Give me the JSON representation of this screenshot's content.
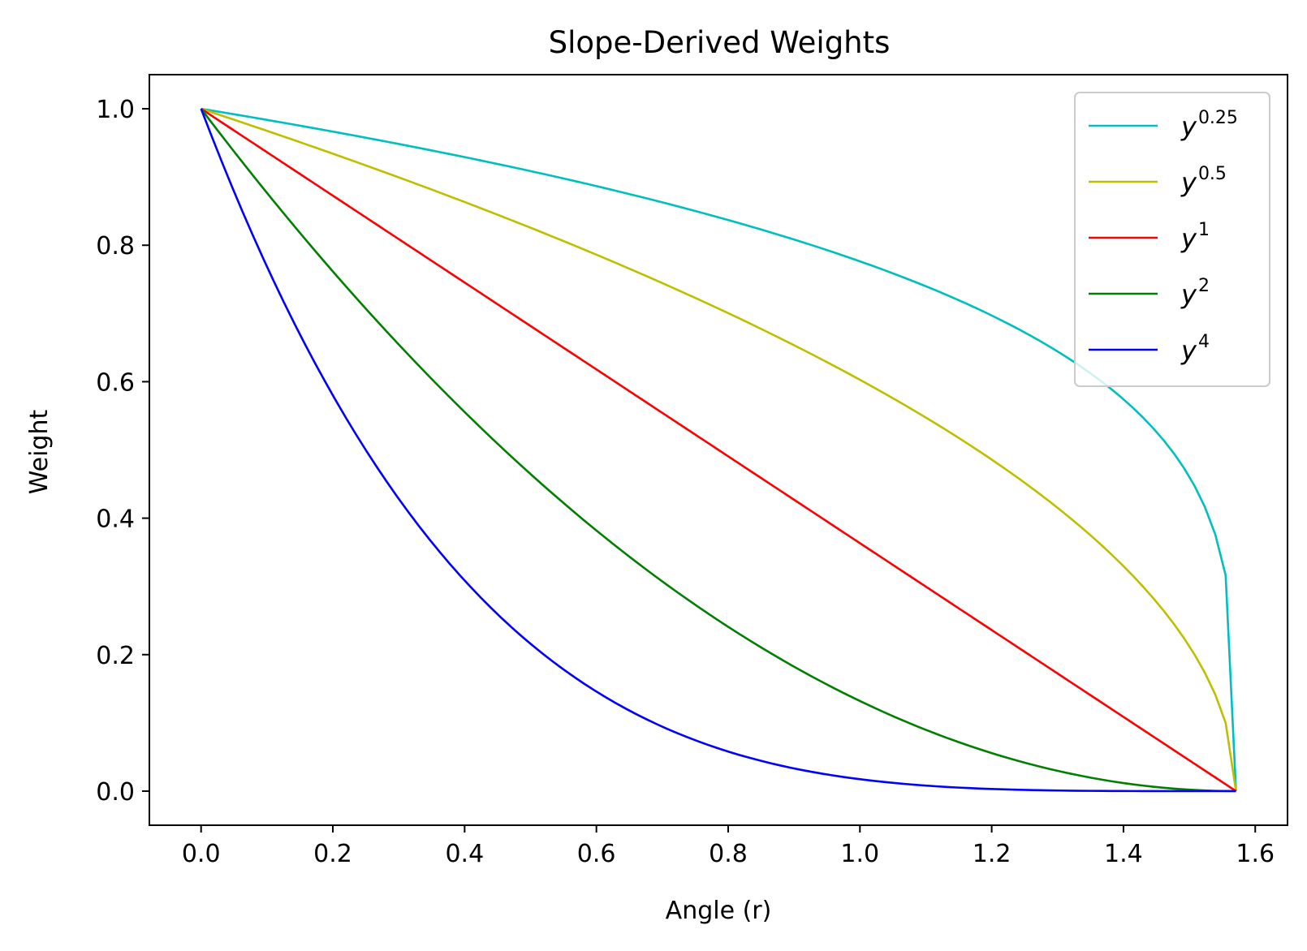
{
  "chart_data": {
    "type": "line",
    "title": "Slope-Derived Weights",
    "xlabel": "Angle (r)",
    "ylabel": "Weight",
    "xlim": [
      -0.0785,
      1.649
    ],
    "ylim": [
      -0.05,
      1.05
    ],
    "x_ticks": [
      "0.0",
      "0.2",
      "0.4",
      "0.6",
      "0.8",
      "1.0",
      "1.2",
      "1.4",
      "1.6"
    ],
    "x_tick_values": [
      0.0,
      0.2,
      0.4,
      0.6,
      0.8,
      1.0,
      1.2,
      1.4,
      1.6
    ],
    "y_ticks": [
      "0.0",
      "0.2",
      "0.4",
      "0.6",
      "0.8",
      "1.0"
    ],
    "y_tick_values": [
      0.0,
      0.2,
      0.4,
      0.6,
      0.8,
      1.0
    ],
    "x_domain": [
      0.0,
      1.5708
    ],
    "grid": false,
    "legend_position": "top-right",
    "series": [
      {
        "base": "y",
        "exponent": "0.25",
        "p": 0.25,
        "color": "#00bfbf"
      },
      {
        "base": "y",
        "exponent": "0.5",
        "p": 0.5,
        "color": "#bfbf00"
      },
      {
        "base": "y",
        "exponent": "1",
        "p": 1,
        "color": "#ff0000"
      },
      {
        "base": "y",
        "exponent": "2",
        "p": 2,
        "color": "#008000"
      },
      {
        "base": "y",
        "exponent": "4",
        "p": 4,
        "color": "#0000ff"
      }
    ]
  }
}
